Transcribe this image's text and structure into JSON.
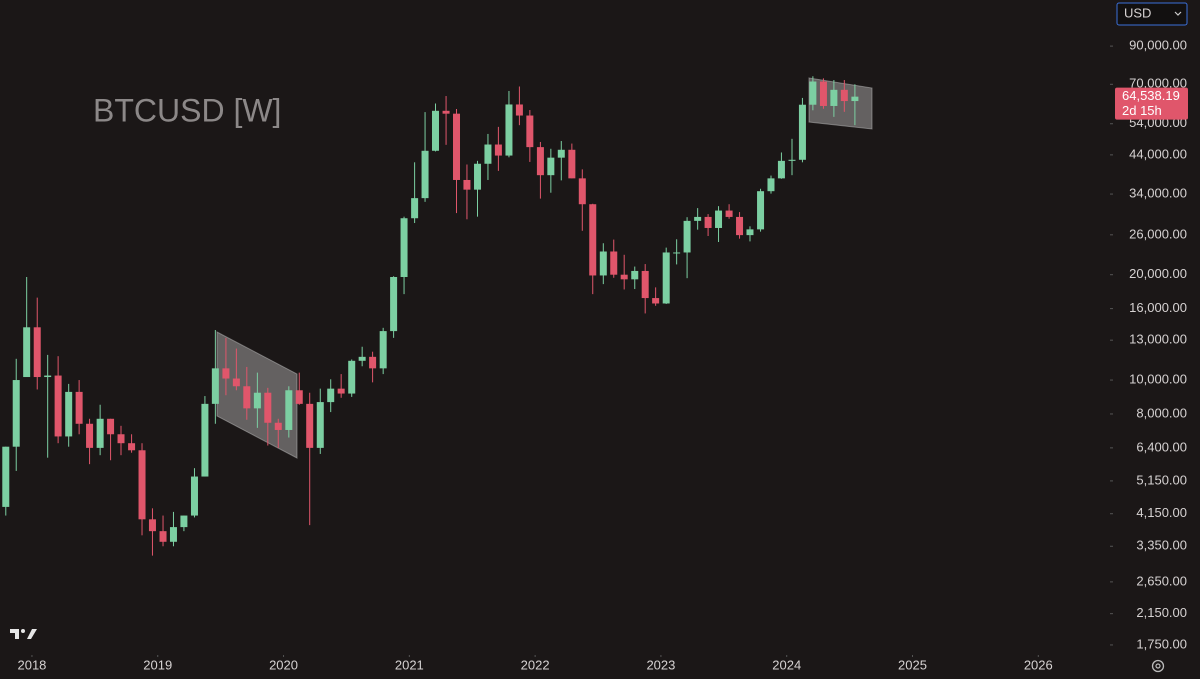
{
  "chart_data": {
    "type": "candlestick",
    "title": "BTCUSD [W]",
    "currency": "USD",
    "log_scale": true,
    "grid": false,
    "up_color": "#7ccfa2",
    "down_color": "#e0566b",
    "background": "#1b1717",
    "last_price": {
      "value": 64538.19,
      "label": "64,538.19"
    },
    "countdown": "2d 15h",
    "xlim": [
      2017.746,
      2026.57
    ],
    "xticks": [
      2018,
      2019,
      2020,
      2021,
      2022,
      2023,
      2024,
      2025,
      2026
    ],
    "ylim": [
      1638,
      121900
    ],
    "yticks": [
      {
        "value": 90000,
        "label": "90,000.00"
      },
      {
        "value": 70000,
        "label": "70,000.00"
      },
      {
        "value": 54000,
        "label": "54,000.00"
      },
      {
        "value": 44000,
        "label": "44,000.00"
      },
      {
        "value": 34000,
        "label": "34,000.00"
      },
      {
        "value": 26000,
        "label": "26,000.00"
      },
      {
        "value": 20000,
        "label": "20,000.00"
      },
      {
        "value": 16000,
        "label": "16,000.00"
      },
      {
        "value": 13000,
        "label": "13,000.00"
      },
      {
        "value": 10000,
        "label": "10,000.00"
      },
      {
        "value": 8000,
        "label": "8,000.00"
      },
      {
        "value": 6400,
        "label": "6,400.00"
      },
      {
        "value": 5150,
        "label": "5,150.00"
      },
      {
        "value": 4150,
        "label": "4,150.00"
      },
      {
        "value": 3350,
        "label": "3,350.00"
      },
      {
        "value": 2650,
        "label": "2,650.00"
      },
      {
        "value": 2150,
        "label": "2,150.00"
      },
      {
        "value": 1750,
        "label": "1,750.00"
      }
    ],
    "x": [
      2017.792,
      2017.875,
      2017.958,
      2018.042,
      2018.125,
      2018.208,
      2018.292,
      2018.375,
      2018.458,
      2018.542,
      2018.625,
      2018.708,
      2018.792,
      2018.875,
      2018.958,
      2019.042,
      2019.125,
      2019.208,
      2019.292,
      2019.375,
      2019.458,
      2019.542,
      2019.625,
      2019.708,
      2019.792,
      2019.875,
      2019.958,
      2020.042,
      2020.125,
      2020.208,
      2020.292,
      2020.375,
      2020.458,
      2020.542,
      2020.625,
      2020.708,
      2020.792,
      2020.875,
      2020.958,
      2021.042,
      2021.125,
      2021.208,
      2021.292,
      2021.375,
      2021.458,
      2021.542,
      2021.625,
      2021.708,
      2021.792,
      2021.875,
      2021.958,
      2022.042,
      2022.125,
      2022.208,
      2022.292,
      2022.375,
      2022.458,
      2022.542,
      2022.625,
      2022.708,
      2022.792,
      2022.875,
      2022.958,
      2023.042,
      2023.125,
      2023.208,
      2023.292,
      2023.375,
      2023.458,
      2023.542,
      2023.625,
      2023.708,
      2023.792,
      2023.875,
      2023.958,
      2024.042,
      2024.125,
      2024.208,
      2024.292,
      2024.375,
      2024.458,
      2024.542
    ],
    "open": [
      4340,
      6450,
      10200,
      14150,
      10200,
      10300,
      6900,
      9250,
      7500,
      6400,
      7750,
      7000,
      6600,
      6300,
      4000,
      3700,
      3450,
      3800,
      4100,
      5300,
      8550,
      10800,
      10100,
      9600,
      8300,
      9200,
      7550,
      7200,
      9350,
      8550,
      6400,
      8650,
      9450,
      9150,
      11350,
      11650,
      10800,
      13800,
      19700,
      29000,
      33100,
      45200,
      58800,
      57700,
      37300,
      35000,
      41500,
      47100,
      43800,
      61300,
      57000,
      46300,
      38500,
      43200,
      45500,
      37700,
      31800,
      19900,
      23300,
      20000,
      19400,
      20500,
      17150,
      16550,
      23150,
      23150,
      28500,
      29250,
      27200,
      30500,
      29250,
      25950,
      26950,
      34650,
      37700,
      42300,
      42600,
      61200,
      71300,
      60700,
      67500,
      62700
    ],
    "high": [
      6450,
      11500,
      19700,
      17200,
      11800,
      11700,
      9750,
      10000,
      7750,
      8500,
      7750,
      7400,
      7000,
      6600,
      4300,
      4100,
      4200,
      4100,
      5600,
      9000,
      13900,
      13200,
      12300,
      10900,
      10500,
      9500,
      7750,
      9600,
      10500,
      9200,
      9450,
      10050,
      10400,
      11450,
      12450,
      12050,
      14100,
      19800,
      29300,
      41900,
      58300,
      61700,
      64800,
      59500,
      41300,
      42300,
      50500,
      52900,
      67000,
      69000,
      59100,
      47900,
      45800,
      48200,
      47400,
      40000,
      31900,
      24600,
      25200,
      22800,
      21100,
      21450,
      18400,
      23900,
      25250,
      29200,
      31000,
      29800,
      31400,
      31800,
      30200,
      27500,
      35200,
      38400,
      44700,
      48900,
      64000,
      73800,
      72800,
      72000,
      72000,
      70000
    ],
    "low": [
      4100,
      5500,
      10900,
      9400,
      6000,
      6600,
      6450,
      7000,
      5750,
      6100,
      5900,
      6100,
      6200,
      3600,
      3150,
      3350,
      3350,
      3700,
      4050,
      5300,
      7500,
      9050,
      9350,
      7700,
      7300,
      6500,
      6400,
      6850,
      8500,
      3850,
      6150,
      8100,
      8900,
      8950,
      10950,
      9850,
      10400,
      13200,
      17600,
      28100,
      32300,
      45000,
      47000,
      30000,
      28800,
      29300,
      37300,
      39600,
      43300,
      53500,
      42000,
      33000,
      34300,
      37200,
      37700,
      26700,
      17600,
      18800,
      19600,
      18150,
      18200,
      15500,
      16300,
      16500,
      21400,
      19550,
      26900,
      25800,
      24800,
      28900,
      25350,
      24900,
      26550,
      34100,
      37600,
      38500,
      41900,
      59000,
      59600,
      56500,
      58400,
      53500
    ],
    "close": [
      6450,
      10000,
      14150,
      10200,
      10300,
      6900,
      9250,
      7500,
      6400,
      7750,
      7000,
      6600,
      6300,
      4000,
      3700,
      3450,
      3800,
      4100,
      5300,
      8550,
      10800,
      10100,
      9600,
      8300,
      9200,
      7550,
      7200,
      9350,
      8550,
      6400,
      8650,
      9450,
      9150,
      11350,
      11650,
      10800,
      13800,
      19700,
      29000,
      33100,
      45200,
      58800,
      57700,
      37300,
      35000,
      41500,
      47100,
      43800,
      61300,
      57000,
      46300,
      38500,
      43200,
      45500,
      37700,
      31800,
      19900,
      23300,
      20000,
      19400,
      20500,
      17150,
      16550,
      23150,
      23150,
      28500,
      29250,
      27200,
      30500,
      29250,
      25950,
      26950,
      34650,
      37700,
      42300,
      42600,
      61200,
      71300,
      60700,
      67500,
      62700,
      64538.19
    ]
  }
}
